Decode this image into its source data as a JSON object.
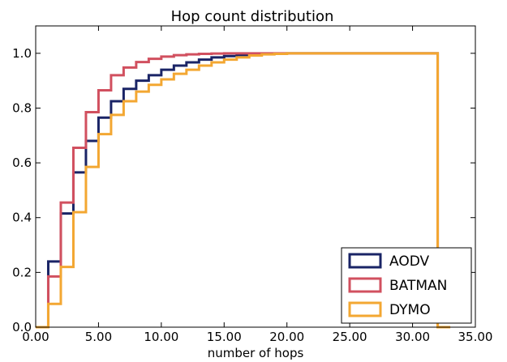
{
  "chart_data": {
    "type": "line",
    "step": true,
    "title": "Hop count distribution",
    "xlabel": "number of hops",
    "ylabel": "",
    "xlim": [
      0,
      35
    ],
    "ylim": [
      0,
      1.1
    ],
    "xticks": [
      0,
      5,
      10,
      15,
      20,
      25,
      30,
      35
    ],
    "xtick_labels": [
      "0.00",
      "5.00",
      "10.00",
      "15.00",
      "20.00",
      "25.00",
      "30.00",
      "35.00"
    ],
    "yticks": [
      0.0,
      0.2,
      0.4,
      0.6,
      0.8,
      1.0
    ],
    "ytick_labels": [
      "0.0",
      "0.2",
      "0.4",
      "0.6",
      "0.8",
      "1.0"
    ],
    "grid": false,
    "legend_position": "bottom-right",
    "x": [
      0,
      1,
      2,
      3,
      4,
      5,
      6,
      7,
      8,
      9,
      10,
      11,
      12,
      13,
      14,
      15,
      16,
      17,
      18,
      19,
      20,
      21,
      22,
      23,
      24,
      25,
      26,
      27,
      28,
      29,
      30,
      31,
      32
    ],
    "series": [
      {
        "name": "AODV",
        "color": "#1a2466",
        "values": [
          0.0,
          0.24,
          0.415,
          0.565,
          0.68,
          0.765,
          0.825,
          0.87,
          0.9,
          0.92,
          0.94,
          0.955,
          0.967,
          0.977,
          0.985,
          0.99,
          0.994,
          0.997,
          0.998,
          0.999,
          1.0,
          1.0,
          1.0,
          1.0,
          1.0,
          1.0,
          1.0,
          1.0,
          1.0,
          1.0,
          1.0,
          1.0,
          0.0
        ]
      },
      {
        "name": "BATMAN",
        "color": "#d1505f",
        "values": [
          0.0,
          0.185,
          0.455,
          0.655,
          0.785,
          0.865,
          0.92,
          0.948,
          0.968,
          0.98,
          0.988,
          0.993,
          0.996,
          0.998,
          0.999,
          1.0,
          1.0,
          1.0,
          1.0,
          1.0,
          1.0,
          1.0,
          1.0,
          1.0,
          1.0,
          1.0,
          1.0,
          1.0,
          1.0,
          1.0,
          1.0,
          1.0,
          0.0
        ]
      },
      {
        "name": "DYMO",
        "color": "#f3a732",
        "values": [
          0.0,
          0.085,
          0.22,
          0.42,
          0.585,
          0.705,
          0.775,
          0.825,
          0.86,
          0.885,
          0.905,
          0.925,
          0.94,
          0.955,
          0.967,
          0.977,
          0.985,
          0.992,
          0.996,
          0.998,
          1.0,
          1.0,
          1.0,
          1.0,
          1.0,
          1.0,
          1.0,
          1.0,
          1.0,
          1.0,
          1.0,
          1.0,
          0.0
        ]
      }
    ]
  }
}
